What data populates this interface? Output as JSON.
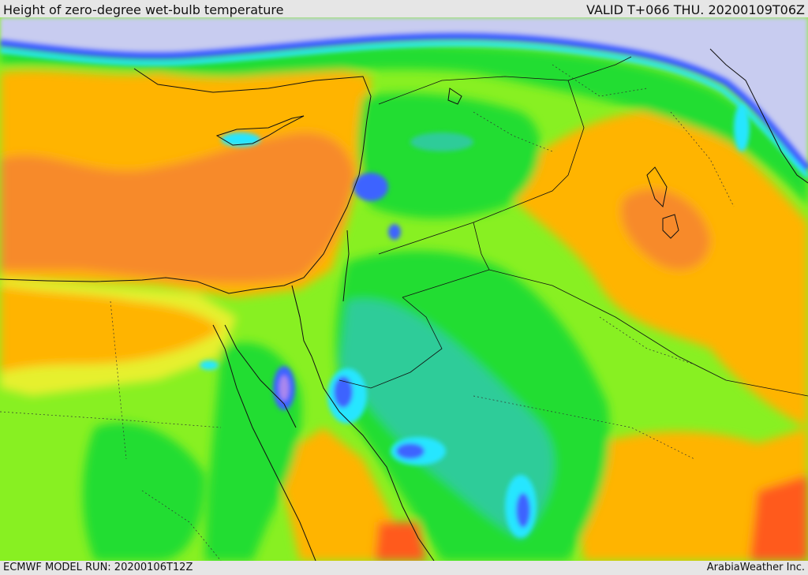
{
  "header": {
    "title": "Height of zero-degree wet-bulb temperature",
    "valid": "VALID T+066 THU. 20200109T06Z"
  },
  "footer": {
    "model_run": "ECMWF MODEL RUN: 20200106T12Z",
    "credit": "ArabiaWeather Inc."
  },
  "palette": {
    "sea_ice_blue": "#c8ccf0",
    "blue": "#3c64ff",
    "cyan": "#28e6ff",
    "teal": "#2dcc99",
    "green": "#22dd33",
    "lime": "#88f022",
    "yellow": "#e6f02e",
    "orange": "#ffb400",
    "dark_orange": "#f78a2c",
    "red": "#ff5a1e",
    "violet": "#aa88ee"
  }
}
